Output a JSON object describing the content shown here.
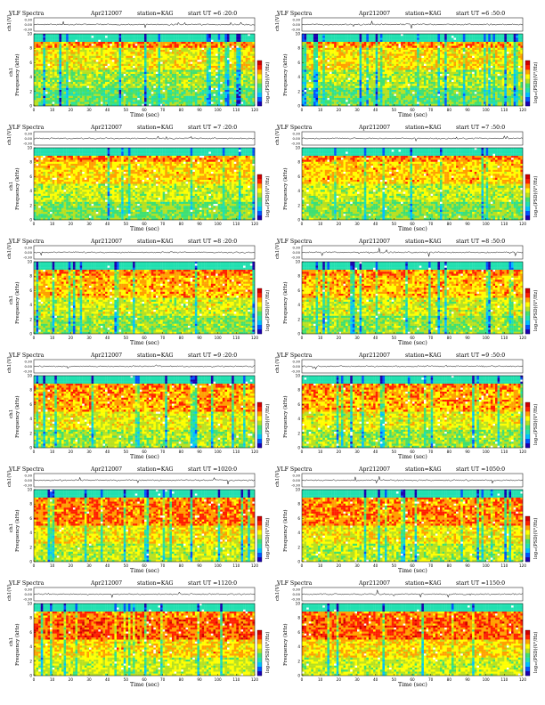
{
  "colors": {
    "colormap": [
      "#1a00b0",
      "#0055ff",
      "#00c0ff",
      "#20e0b0",
      "#40e070",
      "#b8e020",
      "#ffff00",
      "#ffa000",
      "#ff2000",
      "#d00000",
      "#ffffff"
    ],
    "trace": "#000000"
  },
  "chart_data": [
    {
      "type": "heatmap",
      "title": "VLF Spectra",
      "date": "Apr212007",
      "station": "station=KAG",
      "start": "start  UT =6 :20:0",
      "ts_ylabel": "ch1(V)",
      "ts_ticks": [
        "0.30",
        "0.00",
        "-0.30"
      ],
      "ylabel": "Frequency (kHz)",
      "y_ticks": [
        "0",
        "2",
        "4",
        "6",
        "8",
        "10"
      ],
      "ylim": [
        0,
        10
      ],
      "xlabel": "Time (sec)",
      "x_ticks": [
        "0",
        "10",
        "20",
        "30",
        "40",
        "50",
        "60",
        "70",
        "80",
        "90",
        "100",
        "110",
        "120"
      ],
      "xlim": [
        0,
        120
      ],
      "colorbar_label": "log₁₀(PSD)(V²/Hz)",
      "intensity": 0.35,
      "channel": "ch1"
    },
    {
      "type": "heatmap",
      "title": "VLF Spectra",
      "date": "Apr212007",
      "station": "station=KAG",
      "start": "start  UT =6 :50:0",
      "ts_ylabel": "ch1(V)",
      "ts_ticks": [
        "0.30",
        "0.00",
        "-0.30"
      ],
      "ylabel": "Frequency (kHz)",
      "y_ticks": [
        "0",
        "2",
        "4",
        "6",
        "8",
        "10"
      ],
      "ylim": [
        0,
        10
      ],
      "xlabel": "Time (sec)",
      "x_ticks": [
        "0",
        "10",
        "20",
        "30",
        "40",
        "50",
        "60",
        "70",
        "80",
        "90",
        "100",
        "110",
        "120"
      ],
      "xlim": [
        0,
        120
      ],
      "colorbar_label": "log₁₀(PSD)(V²/Hz)",
      "intensity": 0.42,
      "channel": ""
    },
    {
      "type": "heatmap",
      "title": "VLF Spectra",
      "date": "Apr212007",
      "station": "station=KAG",
      "start": "start  UT =7 :20:0",
      "ts_ylabel": "ch1(V)",
      "ts_ticks": [
        "0.30",
        "0.00",
        "-0.30"
      ],
      "ylabel": "Frequency (kHz)",
      "y_ticks": [
        "0",
        "2",
        "4",
        "6",
        "8",
        "10"
      ],
      "ylim": [
        0,
        10
      ],
      "xlabel": "Time (sec)",
      "x_ticks": [
        "0",
        "10",
        "20",
        "30",
        "40",
        "50",
        "60",
        "70",
        "80",
        "90",
        "100",
        "110",
        "120"
      ],
      "xlim": [
        0,
        120
      ],
      "colorbar_label": "log₁₀(PSD)(V²/Hz)",
      "intensity": 0.48,
      "channel": "ch1"
    },
    {
      "type": "heatmap",
      "title": "VLF Spectra",
      "date": "Apr212007",
      "station": "station=KAG",
      "start": "start  UT =7 :50:0",
      "ts_ylabel": "ch1(V)",
      "ts_ticks": [
        "0.30",
        "0.00",
        "-0.30"
      ],
      "ylabel": "Frequency (kHz)",
      "y_ticks": [
        "0",
        "2",
        "4",
        "6",
        "8",
        "10"
      ],
      "ylim": [
        0,
        10
      ],
      "xlabel": "Time (sec)",
      "x_ticks": [
        "0",
        "10",
        "20",
        "30",
        "40",
        "50",
        "60",
        "70",
        "80",
        "90",
        "100",
        "110",
        "120"
      ],
      "xlim": [
        0,
        120
      ],
      "colorbar_label": "log₁₀(PSD)(V²/Hz)",
      "intensity": 0.5,
      "channel": ""
    },
    {
      "type": "heatmap",
      "title": "VLF Spectra",
      "date": "Apr212007",
      "station": "station=KAG",
      "start": "start  UT =8 :20:0",
      "ts_ylabel": "ch1(V)",
      "ts_ticks": [
        "0.30",
        "0.00",
        "-0.30"
      ],
      "ylabel": "Frequency (kHz)",
      "y_ticks": [
        "0",
        "2",
        "4",
        "6",
        "8",
        "10"
      ],
      "ylim": [
        0,
        10
      ],
      "xlabel": "Time (sec)",
      "x_ticks": [
        "0",
        "10",
        "20",
        "30",
        "40",
        "50",
        "60",
        "70",
        "80",
        "90",
        "100",
        "110",
        "120"
      ],
      "xlim": [
        0,
        120
      ],
      "colorbar_label": "log₁₀(PSD)(V²/Hz)",
      "intensity": 0.55,
      "channel": "ch1"
    },
    {
      "type": "heatmap",
      "title": "VLF Spectra",
      "date": "Apr212007",
      "station": "station=KAG",
      "start": "start  UT =8 :50:0",
      "ts_ylabel": "ch1(V)",
      "ts_ticks": [
        "0.30",
        "0.00",
        "-0.30"
      ],
      "ylabel": "Frequency (kHz)",
      "y_ticks": [
        "0",
        "2",
        "4",
        "6",
        "8",
        "10"
      ],
      "ylim": [
        0,
        10
      ],
      "xlabel": "Time (sec)",
      "x_ticks": [
        "0",
        "10",
        "20",
        "30",
        "40",
        "50",
        "60",
        "70",
        "80",
        "90",
        "100",
        "110",
        "120"
      ],
      "xlim": [
        0,
        120
      ],
      "colorbar_label": "log₁₀(PSD)(V²/Hz)",
      "intensity": 0.55,
      "channel": ""
    },
    {
      "type": "heatmap",
      "title": "VLF Spectra",
      "date": "Apr212007",
      "station": "station=KAG",
      "start": "start  UT =9 :20:0",
      "ts_ylabel": "ch1(V)",
      "ts_ticks": [
        "0.30",
        "0.00",
        "-0.30"
      ],
      "ylabel": "Frequency (kHz)",
      "y_ticks": [
        "0",
        "2",
        "4",
        "6",
        "8",
        "10"
      ],
      "ylim": [
        0,
        10
      ],
      "xlabel": "Time (sec)",
      "x_ticks": [
        "0",
        "10",
        "20",
        "30",
        "40",
        "50",
        "60",
        "70",
        "80",
        "90",
        "100",
        "110",
        "120"
      ],
      "xlim": [
        0,
        120
      ],
      "colorbar_label": "log₁₀(PSD)(V²/Hz)",
      "intensity": 0.62,
      "channel": "ch1"
    },
    {
      "type": "heatmap",
      "title": "VLF Spectra",
      "date": "Apr212007",
      "station": "station=KAG",
      "start": "start  UT =9 :50:0",
      "ts_ylabel": "ch1(V)",
      "ts_ticks": [
        "0.30",
        "0.00",
        "-0.30"
      ],
      "ylabel": "Frequency (kHz)",
      "y_ticks": [
        "0",
        "2",
        "4",
        "6",
        "8",
        "10"
      ],
      "ylim": [
        0,
        10
      ],
      "xlabel": "Time (sec)",
      "x_ticks": [
        "0",
        "10",
        "20",
        "30",
        "40",
        "50",
        "60",
        "70",
        "80",
        "90",
        "100",
        "110",
        "120"
      ],
      "xlim": [
        0,
        120
      ],
      "colorbar_label": "log₁₀(PSD)(V²/Hz)",
      "intensity": 0.6,
      "channel": ""
    },
    {
      "type": "heatmap",
      "title": "VLF Spectra",
      "date": "Apr212007",
      "station": "station=KAG",
      "start": "start  UT =1020:0",
      "ts_ylabel": "ch1(V)",
      "ts_ticks": [
        "0.30",
        "0.00",
        "-0.30"
      ],
      "ylabel": "Frequency (kHz)",
      "y_ticks": [
        "0",
        "2",
        "4",
        "6",
        "8",
        "10"
      ],
      "ylim": [
        0,
        10
      ],
      "xlabel": "Time (sec)",
      "x_ticks": [
        "0",
        "10",
        "20",
        "30",
        "40",
        "50",
        "60",
        "70",
        "80",
        "90",
        "100",
        "110",
        "120"
      ],
      "xlim": [
        0,
        120
      ],
      "colorbar_label": "log₁₀(PSD)(V²/Hz)",
      "intensity": 0.72,
      "channel": "ch1"
    },
    {
      "type": "heatmap",
      "title": "VLF Spectra",
      "date": "Apr212007",
      "station": "station=KAG",
      "start": "start  UT =1050:0",
      "ts_ylabel": "ch1(V)",
      "ts_ticks": [
        "0.30",
        "0.00",
        "-0.30"
      ],
      "ylabel": "Frequency (kHz)",
      "y_ticks": [
        "0",
        "2",
        "4",
        "6",
        "8",
        "10"
      ],
      "ylim": [
        0,
        10
      ],
      "xlabel": "Time (sec)",
      "x_ticks": [
        "0",
        "10",
        "20",
        "30",
        "40",
        "50",
        "60",
        "70",
        "80",
        "90",
        "100",
        "110",
        "120"
      ],
      "xlim": [
        0,
        120
      ],
      "colorbar_label": "log₁₀(PSD)(V²/Hz)",
      "intensity": 0.7,
      "channel": ""
    },
    {
      "type": "heatmap",
      "title": "VLF Spectra",
      "date": "Apr212007",
      "station": "station=KAG",
      "start": "start  UT =1120:0",
      "ts_ylabel": "ch1(V)",
      "ts_ticks": [
        "0.30",
        "0.00",
        "-0.30"
      ],
      "ylabel": "Frequency (kHz)",
      "y_ticks": [
        "0",
        "2",
        "4",
        "6",
        "8",
        "10"
      ],
      "ylim": [
        0,
        10
      ],
      "xlabel": "Time (sec)",
      "x_ticks": [
        "0",
        "10",
        "20",
        "30",
        "40",
        "50",
        "60",
        "70",
        "80",
        "90",
        "100",
        "110",
        "120"
      ],
      "xlim": [
        0,
        120
      ],
      "colorbar_label": "log₁₀(PSD)(V²/Hz)",
      "intensity": 0.8,
      "channel": "ch1"
    },
    {
      "type": "heatmap",
      "title": "VLF Spectra",
      "date": "Apr212007",
      "station": "station=KAG",
      "start": "start  UT =1150:0",
      "ts_ylabel": "ch1(V)",
      "ts_ticks": [
        "0.30",
        "0.00",
        "-0.30"
      ],
      "ylabel": "Frequency (kHz)",
      "y_ticks": [
        "0",
        "2",
        "4",
        "6",
        "8",
        "10"
      ],
      "ylim": [
        0,
        10
      ],
      "xlabel": "Time (sec)",
      "x_ticks": [
        "0",
        "10",
        "20",
        "30",
        "40",
        "50",
        "60",
        "70",
        "80",
        "90",
        "100",
        "110",
        "120"
      ],
      "xlim": [
        0,
        120
      ],
      "colorbar_label": "log₁₀(PSD)(V²/Hz)",
      "intensity": 0.78,
      "channel": ""
    }
  ]
}
